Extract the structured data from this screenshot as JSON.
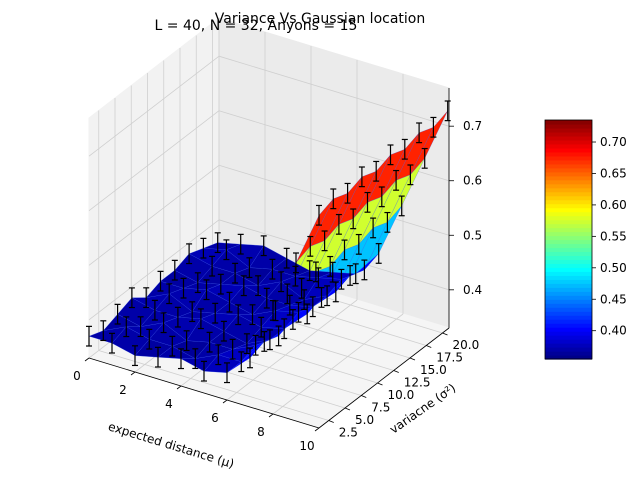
{
  "chart_data": {
    "type": "surface3d",
    "title": "Variance Vs Gaussian location",
    "subtitle": "L = 40, N = 32, Anyons = 15",
    "xlabel": "expected distance (μ)",
    "ylabel": "variacne (σ²)",
    "xlim": [
      0,
      10
    ],
    "ylim": [
      1,
      21
    ],
    "zlim": [
      0.33,
      0.77
    ],
    "x_ticks": [
      "0",
      "2",
      "4",
      "6",
      "8",
      "10"
    ],
    "y_ticks": [
      "2.5",
      "5.0",
      "7.5",
      "10.0",
      "12.5",
      "15.0",
      "17.5",
      "20.0"
    ],
    "z_ticks": [
      "0.4",
      "0.5",
      "0.6",
      "0.7"
    ],
    "colorbar_ticks": [
      "0.40",
      "0.45",
      "0.50",
      "0.55",
      "0.60",
      "0.65",
      "0.70"
    ],
    "colorbar_range": [
      0.355,
      0.735
    ],
    "colormap": "jet",
    "grid": true,
    "error_bars": true,
    "trend_description": "z stays near 0.37 for small expected distance and rises roughly linearly toward 0.73 at distance 10 across all variances",
    "surface_rows": [
      {
        "x": 0.0,
        "z": [
          0.37,
          0.36,
          0.37,
          0.38,
          0.36,
          0.37,
          0.37,
          0.38,
          0.37,
          0.36
        ]
      },
      {
        "x": 1.0,
        "z": [
          0.37,
          0.38,
          0.36,
          0.37,
          0.38,
          0.37,
          0.36,
          0.37,
          0.38,
          0.37
        ]
      },
      {
        "x": 2.0,
        "z": [
          0.36,
          0.37,
          0.38,
          0.37,
          0.36,
          0.38,
          0.37,
          0.37,
          0.36,
          0.38
        ]
      },
      {
        "x": 3.0,
        "z": [
          0.37,
          0.37,
          0.36,
          0.38,
          0.37,
          0.37,
          0.38,
          0.36,
          0.37,
          0.37
        ]
      },
      {
        "x": 4.0,
        "z": [
          0.38,
          0.36,
          0.37,
          0.37,
          0.38,
          0.36,
          0.37,
          0.38,
          0.37,
          0.36
        ]
      },
      {
        "x": 5.0,
        "z": [
          0.37,
          0.38,
          0.37,
          0.36,
          0.37,
          0.38,
          0.37,
          0.36,
          0.38,
          0.37
        ]
      },
      {
        "x": 6.0,
        "z": [
          0.38,
          0.38,
          0.39,
          0.38,
          0.38,
          0.39,
          0.38,
          0.38,
          0.39,
          0.38
        ]
      },
      {
        "x": 7.0,
        "z": [
          0.42,
          0.43,
          0.42,
          0.43,
          0.42,
          0.43,
          0.42,
          0.43,
          0.42,
          0.43
        ]
      },
      {
        "x": 8.0,
        "z": [
          0.52,
          0.53,
          0.52,
          0.53,
          0.52,
          0.53,
          0.52,
          0.53,
          0.52,
          0.53
        ]
      },
      {
        "x": 9.0,
        "z": [
          0.62,
          0.63,
          0.62,
          0.63,
          0.62,
          0.63,
          0.62,
          0.63,
          0.62,
          0.63
        ]
      },
      {
        "x": 10.0,
        "z": [
          0.72,
          0.73,
          0.72,
          0.73,
          0.72,
          0.73,
          0.72,
          0.73,
          0.72,
          0.73
        ]
      }
    ],
    "y_values": [
      1,
      3.2,
      5.4,
      7.6,
      9.8,
      12.0,
      14.2,
      16.4,
      18.6,
      20.8
    ]
  }
}
